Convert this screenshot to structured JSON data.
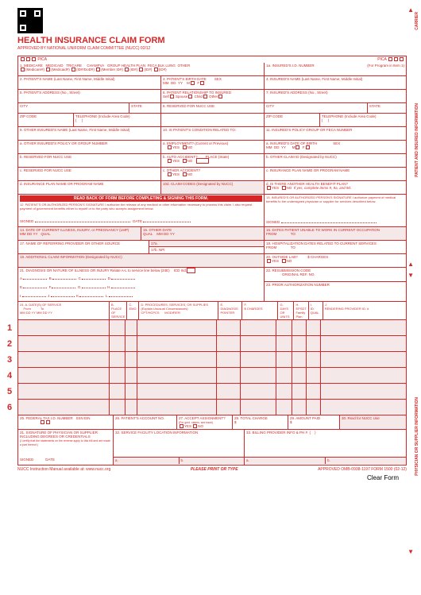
{
  "header": {
    "title": "HEALTH INSURANCE CLAIM FORM",
    "subtitle": "APPROVED BY NATIONAL UNIFORM CLAIM COMMITTEE (NUCC) 02/12",
    "pica_left": "PICA",
    "pica_right": "PICA"
  },
  "sidebar": {
    "carrier": "CARRIER",
    "patient": "PATIENT AND INSURED INFORMATION",
    "physician": "PHYSICIAN OR SUPPLIER INFORMATION"
  },
  "row1": {
    "medicare": "1. MEDICARE",
    "medicaid": "MEDICAID",
    "tricare": "TRICARE",
    "champva": "CHAMPVA",
    "group": "GROUP HEALTH PLAN",
    "feca": "FECA BLK LUNG",
    "other": "OTHER",
    "medicare_sub": "(Medicare#)",
    "medicaid_sub": "(Medicaid#)",
    "tricare_sub": "(ID#/DoD#)",
    "champva_sub": "(Member ID#)",
    "group_sub": "(ID#)",
    "feca_sub": "(ID#)",
    "other_sub": "(ID#)",
    "insured_id": "1a. INSURED'S I.D. NUMBER",
    "for_program": "(For Program in Item 1)"
  },
  "row2": {
    "patient_name": "2. PATIENT'S NAME (Last Name, First Name, Middle Initial)",
    "birth": "3. PATIENT'S BIRTH DATE",
    "mm": "MM",
    "dd": "DD",
    "yy": "YY",
    "sex": "SEX",
    "m": "M",
    "f": "F",
    "insured_name": "4. INSURED'S NAME (Last Name, First Name, Middle Initial)"
  },
  "row3": {
    "patient_addr": "5. PATIENT'S ADDRESS (No., Street)",
    "relationship": "6. PATIENT RELATIONSHIP TO INSURED",
    "self": "Self",
    "spouse": "Spouse",
    "child": "Child",
    "other": "Other",
    "insured_addr": "7. INSURED'S ADDRESS (No., Street)"
  },
  "row4": {
    "city": "CITY",
    "state": "STATE",
    "reserved8": "8. RESERVED FOR NUCC USE"
  },
  "row5": {
    "zip": "ZIP CODE",
    "phone": "TELEPHONE (Include Area Code)"
  },
  "row6": {
    "other_insured": "9. OTHER INSURED'S NAME (Last Name, First Name, Middle Initial)",
    "condition": "10. IS PATIENT'S CONDITION RELATED TO:",
    "insured_policy": "11. INSURED'S POLICY GROUP OR FECA NUMBER"
  },
  "row7": {
    "other_policy": "a. OTHER INSURED'S POLICY OR GROUP NUMBER",
    "employment": "a. EMPLOYMENT? (Current or Previous)",
    "yes": "YES",
    "no": "NO",
    "insured_dob": "a. INSURED'S DATE OF BIRTH"
  },
  "row8": {
    "reserved_b": "b. RESERVED FOR NUCC USE",
    "auto": "b. AUTO ACCIDENT?",
    "place": "PLACE (State)",
    "other_claim": "b. OTHER CLAIM ID (Designated by NUCC)"
  },
  "row9": {
    "reserved_c": "c. RESERVED FOR NUCC USE",
    "other_acc": "c. OTHER ACCIDENT?",
    "plan_name": "c. INSURANCE PLAN NAME OR PROGRAM NAME"
  },
  "row10": {
    "plan_d": "d. INSURANCE PLAN NAME OR PROGRAM NAME",
    "codes": "10d. CLAIM CODES (Designated by NUCC)",
    "another": "d. IS THERE ANOTHER HEALTH BENEFIT PLAN?",
    "if_yes": "If yes, complete items 9, 9a, and 9d."
  },
  "row12": {
    "banner": "READ BACK OF FORM BEFORE COMPLETING & SIGNING THIS FORM.",
    "text12": "12. PATIENT'S OR AUTHORIZED PERSON'S SIGNATURE I authorize the release of any medical or other information necessary to process this claim. I also request payment of government benefits either to myself or to the party who accepts assignment below.",
    "text13": "13. INSURED'S OR AUTHORIZED PERSON'S SIGNATURE I authorize payment of medical benefits to the undersigned physician or supplier for services described below.",
    "signed": "SIGNED",
    "date": "DATE"
  },
  "row14": {
    "current": "14. DATE OF CURRENT ILLNESS, INJURY, or PREGNANCY (LMP)",
    "other_date": "15. OTHER DATE",
    "qual": "QUAL",
    "unable": "16. DATES PATIENT UNABLE TO WORK IN CURRENT OCCUPATION",
    "from": "FROM",
    "to": "TO"
  },
  "row17": {
    "referring": "17. NAME OF REFERRING PROVIDER OR OTHER SOURCE",
    "a17": "17a.",
    "b17": "17b.",
    "npi": "NPI",
    "hosp": "18. HOSPITALIZATION DATES RELATED TO CURRENT SERVICES"
  },
  "row19": {
    "additional": "19. ADDITIONAL CLAIM INFORMATION (Designated by NUCC)",
    "outside": "20. OUTSIDE LAB?",
    "charges": "$ CHARGES"
  },
  "row21": {
    "diagnosis": "21. DIAGNOSIS OR NATURE OF ILLNESS OR INJURY Relate A-L to service line below (24E)",
    "icd": "ICD Ind.",
    "resubmission": "22. RESUBMISSION CODE",
    "original": "ORIGINAL REF. NO.",
    "letters": [
      "A.",
      "B.",
      "C.",
      "D.",
      "E.",
      "F.",
      "G.",
      "H.",
      "I.",
      "J.",
      "K.",
      "L."
    ],
    "prior": "23. PRIOR AUTHORIZATION NUMBER"
  },
  "row24": {
    "header": "24. A.        DATE(S) OF SERVICE",
    "from": "From",
    "to": "To",
    "b": "B.",
    "c": "C.",
    "d": "D. PROCEDURES, SERVICES, OR SUPPLIES",
    "explain": "(Explain Unusual Circumstances)",
    "cpt": "CPT/HCPCS",
    "mod": "MODIFIER",
    "e": "E.",
    "diag": "DIAGNOSIS POINTER",
    "f": "F.",
    "fcharges": "$ CHARGES",
    "g": "G.",
    "days": "DAYS OR UNITS",
    "h": "H.",
    "epsdt": "EPSDT Family Plan",
    "i": "I.",
    "idqual": "ID. QUAL",
    "j": "J.",
    "rendering": "RENDERING PROVIDER ID. #",
    "place": "PLACE OF SERVICE",
    "emg": "EMG",
    "mmddyy": "MM    DD    YY    MM    DD    YY",
    "npi": "NPI"
  },
  "service_lines": [
    1,
    2,
    3,
    4,
    5,
    6
  ],
  "row25": {
    "tax": "25. FEDERAL TAX I.D. NUMBER",
    "ssn": "SSN EIN",
    "account": "26. PATIENT'S ACCOUNT NO.",
    "assignment": "27. ACCEPT ASSIGNMENT?",
    "govt": "(For govt. claims, see back)",
    "total": "28. TOTAL CHARGE",
    "paid": "29. AMOUNT PAID",
    "rsvd": "30. Rsvd for NUCC Use"
  },
  "row31": {
    "signature": "31. SIGNATURE OF PHYSICIAN OR SUPPLIER INCLUDING DEGREES OR CREDENTIALS",
    "certify": "(I certify that the statements on the reverse apply to this bill and are made a part thereof.)",
    "facility": "32. SERVICE FACILITY LOCATION INFORMATION",
    "billing": "33. BILLING PROVIDER INFO & PH #",
    "a": "a.",
    "b": "b."
  },
  "footer": {
    "left": "NUCC Instruction Manual available at: www.nucc.org",
    "mid": "PLEASE PRINT OR TYPE",
    "right": "APPROVED OMB-0938-1197 FORM 1500 (02-12)",
    "clear": "Clear Form"
  },
  "colors": {
    "red": "#d42828",
    "grey": "#f5e8e8"
  }
}
